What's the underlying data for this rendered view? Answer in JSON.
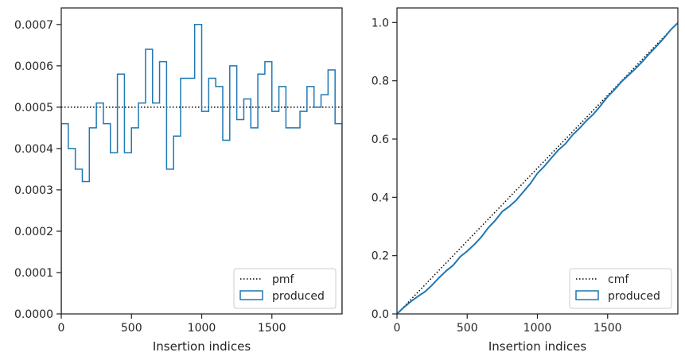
{
  "colors": {
    "produced": "#1f77b4",
    "reference": "#000000",
    "axes": "#262626",
    "legend_border": "#cccccc"
  },
  "chart_data": [
    {
      "type": "histogram-step",
      "xlabel": "Insertion indices",
      "ylabel": "",
      "xlim": [
        0,
        2000
      ],
      "ylim": [
        0,
        0.00074
      ],
      "x_ticks": [
        0,
        500,
        1000,
        1500
      ],
      "x_tick_labels": [
        "0",
        "500",
        "1000",
        "1500"
      ],
      "y_ticks": [
        0,
        0.0001,
        0.0002,
        0.0003,
        0.0004,
        0.0005,
        0.0006,
        0.0007
      ],
      "y_tick_labels": [
        "0.0000",
        "0.0001",
        "0.0002",
        "0.0003",
        "0.0004",
        "0.0005",
        "0.0006",
        "0.0007"
      ],
      "legend_position": "lower right",
      "legend": [
        "pmf",
        "produced"
      ],
      "reference": {
        "name": "pmf",
        "style": "dotted",
        "y": 0.0005
      },
      "series": [
        {
          "name": "produced",
          "bin_width": 50,
          "values": [
            0.00046,
            0.0004,
            0.00035,
            0.00032,
            0.00045,
            0.00051,
            0.00046,
            0.00039,
            0.00058,
            0.00039,
            0.00045,
            0.00051,
            0.00064,
            0.00051,
            0.00061,
            0.00035,
            0.00043,
            0.00057,
            0.00057,
            0.0007,
            0.00049,
            0.00057,
            0.00055,
            0.00042,
            0.0006,
            0.00047,
            0.00052,
            0.00045,
            0.00058,
            0.00061,
            0.00049,
            0.00055,
            0.00045,
            0.00045,
            0.00049,
            0.00055,
            0.0005,
            0.00053,
            0.00059,
            0.00046
          ]
        }
      ]
    },
    {
      "type": "line",
      "xlabel": "Insertion indices",
      "ylabel": "",
      "xlim": [
        0,
        2000
      ],
      "ylim": [
        0,
        1.05
      ],
      "x_ticks": [
        0,
        500,
        1000,
        1500
      ],
      "x_tick_labels": [
        "0",
        "500",
        "1000",
        "1500"
      ],
      "y_ticks": [
        0,
        0.2,
        0.4,
        0.6,
        0.8,
        1.0
      ],
      "y_tick_labels": [
        "0.0",
        "0.2",
        "0.4",
        "0.6",
        "0.8",
        "1.0"
      ],
      "legend_position": "lower right",
      "legend": [
        "cmf",
        "produced"
      ],
      "reference": {
        "name": "cmf",
        "style": "dotted",
        "x": [
          0,
          2000
        ],
        "y": [
          0,
          1.0
        ]
      }
    }
  ]
}
